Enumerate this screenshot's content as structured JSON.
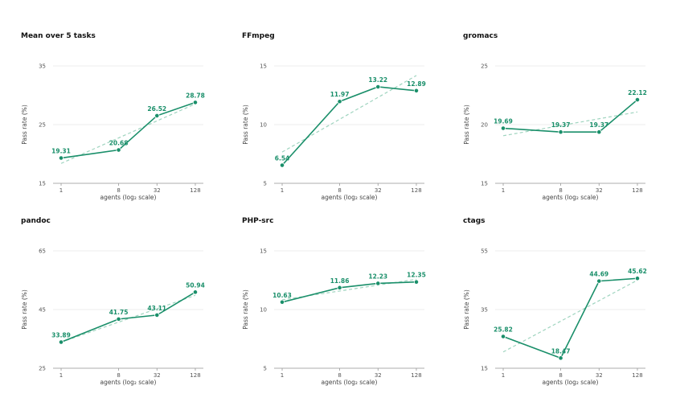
{
  "colors": {
    "line": "#1a8f6a",
    "trend": "#9fd4bf",
    "grid": "#e6e6e6",
    "axis": "#999999"
  },
  "chart_data": [
    {
      "type": "line",
      "title": "Mean over 5 tasks",
      "xlabel": "agents (log₂ scale)",
      "ylabel": "Pass rate (%)",
      "x": [
        1,
        8,
        32,
        128
      ],
      "x_scale": "log2",
      "ylim": [
        15,
        35
      ],
      "yticks": [
        15,
        25,
        35
      ],
      "values": [
        19.31,
        20.68,
        26.52,
        28.78
      ],
      "labels": [
        "19.31",
        "20.68",
        "26.52",
        "28.78"
      ],
      "trendline": true,
      "grid": true
    },
    {
      "type": "line",
      "title": "FFmpeg",
      "xlabel": "agents (log₂ scale)",
      "ylabel": "Pass rate (%)",
      "x": [
        1,
        8,
        32,
        128
      ],
      "x_scale": "log2",
      "ylim": [
        5,
        15
      ],
      "yticks": [
        5,
        10,
        15
      ],
      "values": [
        6.54,
        11.97,
        13.22,
        12.89
      ],
      "labels": [
        "6.54",
        "11.97",
        "13.22",
        "12.89"
      ],
      "trendline": true,
      "grid": true
    },
    {
      "type": "line",
      "title": "gromacs",
      "xlabel": "agents (log₂ scale)",
      "ylabel": "Pass rate (%)",
      "x": [
        1,
        8,
        32,
        128
      ],
      "x_scale": "log2",
      "ylim": [
        15,
        25
      ],
      "yticks": [
        15,
        20,
        25
      ],
      "values": [
        19.69,
        19.37,
        19.37,
        22.12
      ],
      "labels": [
        "19.69",
        "19.37",
        "19.37",
        "22.12"
      ],
      "trendline": true,
      "grid": true
    },
    {
      "type": "line",
      "title": "pandoc",
      "xlabel": "agents (log₂ scale)",
      "ylabel": "Pass rate (%)",
      "x": [
        1,
        8,
        32,
        128
      ],
      "x_scale": "log2",
      "ylim": [
        25,
        65
      ],
      "yticks": [
        25,
        45,
        65
      ],
      "values": [
        33.89,
        41.75,
        43.11,
        50.94
      ],
      "labels": [
        "33.89",
        "41.75",
        "43.11",
        "50.94"
      ],
      "trendline": true,
      "grid": true
    },
    {
      "type": "line",
      "title": "PHP-src",
      "xlabel": "agents (log₂ scale)",
      "ylabel": "Pass rate (%)",
      "x": [
        1,
        8,
        32,
        128
      ],
      "x_scale": "log2",
      "ylim": [
        5,
        15
      ],
      "yticks": [
        5,
        10,
        15
      ],
      "values": [
        10.63,
        11.86,
        12.23,
        12.35
      ],
      "labels": [
        "10.63",
        "11.86",
        "12.23",
        "12.35"
      ],
      "trendline": true,
      "grid": true
    },
    {
      "type": "line",
      "title": "ctags",
      "xlabel": "agents (log₂ scale)",
      "ylabel": "Pass rate (%)",
      "x": [
        1,
        8,
        32,
        128
      ],
      "x_scale": "log2",
      "ylim": [
        15,
        55
      ],
      "yticks": [
        15,
        35,
        55
      ],
      "values": [
        25.82,
        18.47,
        44.69,
        45.62
      ],
      "labels": [
        "25.82",
        "18.47",
        "44.69",
        "45.62"
      ],
      "trendline": true,
      "grid": true
    }
  ]
}
